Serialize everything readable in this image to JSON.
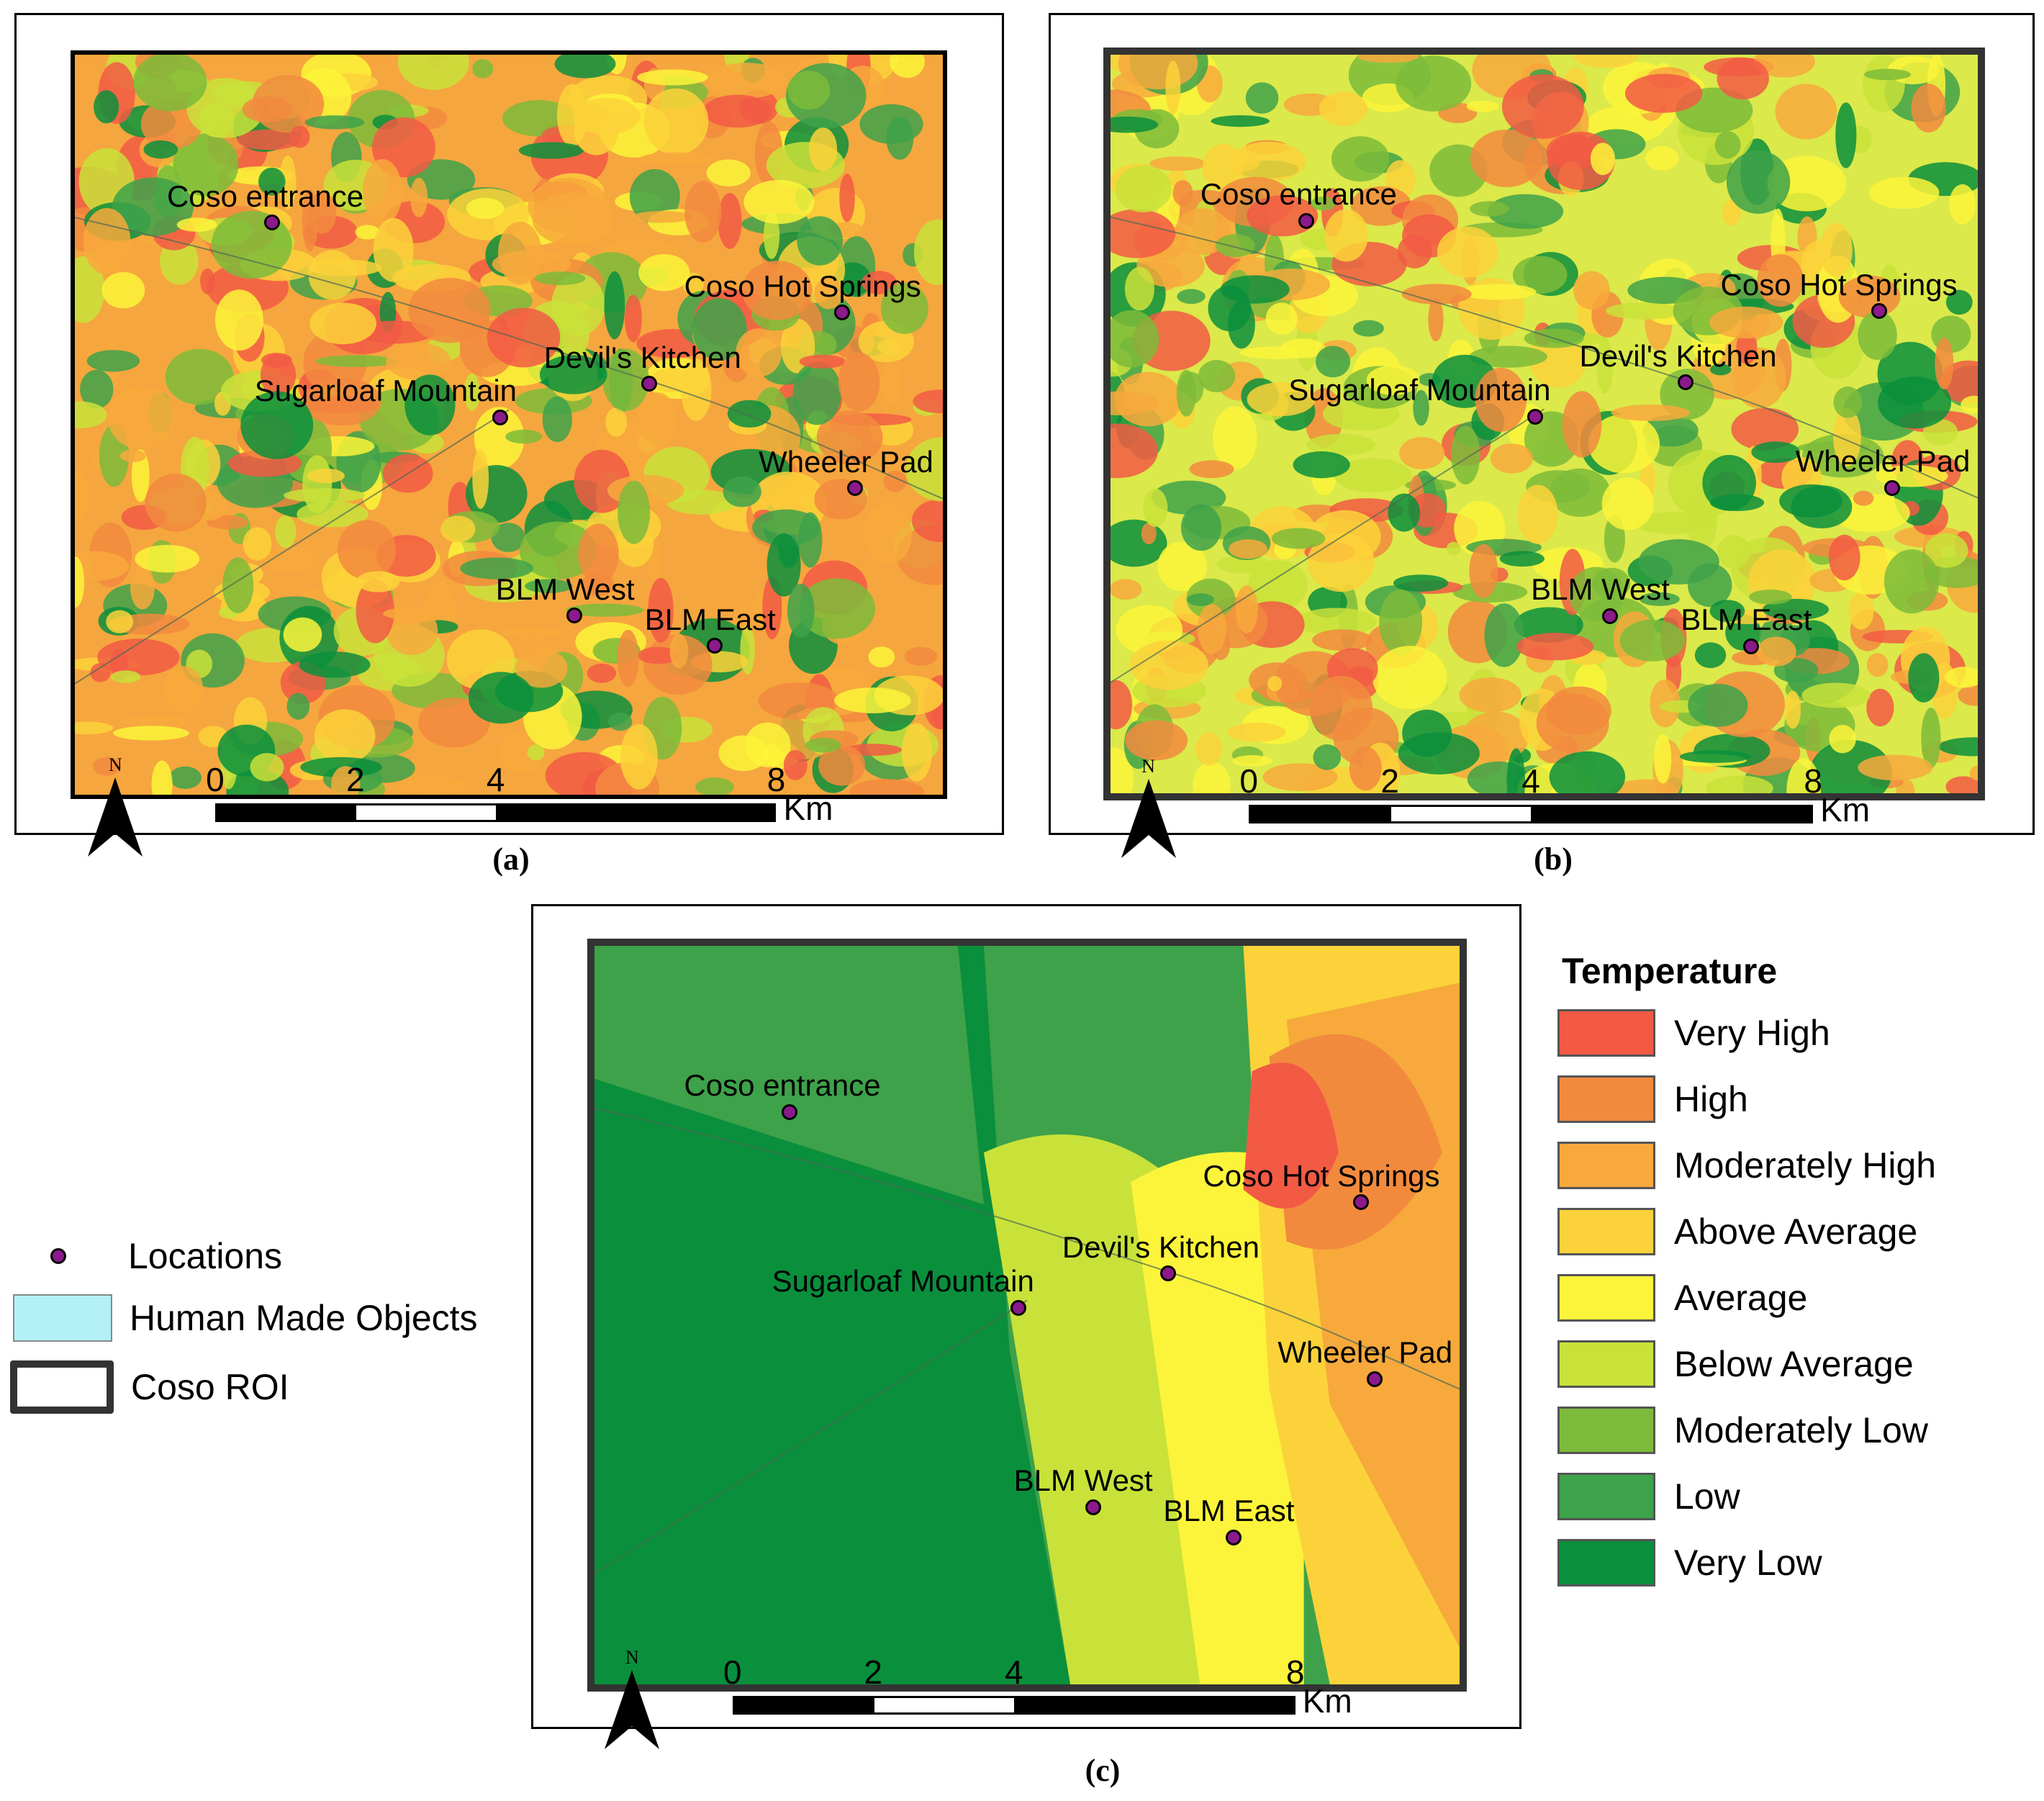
{
  "panels": [
    {
      "id": "a",
      "caption": "(a)",
      "scale_ticks": [
        "0",
        "2",
        "4",
        "8"
      ],
      "scale_unit": "Km",
      "north": "N",
      "base": "#f6a63e",
      "palette": [
        "#0a8f3c",
        "#3ea24a",
        "#7dbb3a",
        "#c9e23a",
        "#fbf43a",
        "#fbd23a",
        "#f7a93c",
        "#f28a3e",
        "#f25a44"
      ],
      "locations": [
        "Coso entrance",
        "Coso Hot Springs",
        "Devil's Kitchen",
        "Sugarloaf Mountain",
        "Wheeler Pad",
        "BLM West",
        "BLM East"
      ]
    },
    {
      "id": "b",
      "caption": "(b)",
      "scale_ticks": [
        "0",
        "2",
        "4",
        "8"
      ],
      "scale_unit": "Km",
      "north": "N",
      "base": "#dbe94a",
      "palette": [
        "#0a8f3c",
        "#3ea24a",
        "#7dbb3a",
        "#c9e23a",
        "#fbf43a",
        "#fbd23a",
        "#f7a93c",
        "#f28a3e",
        "#f25a44"
      ],
      "locations": [
        "Coso entrance",
        "Coso Hot Springs",
        "Devil's Kitchen",
        "Sugarloaf Mountain",
        "Wheeler Pad",
        "BLM West",
        "BLM East"
      ]
    },
    {
      "id": "c",
      "caption": "(c)",
      "scale_ticks": [
        "0",
        "2",
        "4",
        "8"
      ],
      "scale_unit": "Km",
      "north": "N",
      "base": "#3ea24a",
      "palette": [
        "#0a8f3c",
        "#3ea24a",
        "#7dbb3a",
        "#c9e23a",
        "#fbf43a",
        "#fbd23a",
        "#f7a93c",
        "#f28a3e",
        "#f25a44"
      ],
      "locations": [
        "Coso entrance",
        "Coso Hot Springs",
        "Devil's Kitchen",
        "Sugarloaf Mountain",
        "Wheeler Pad",
        "BLM West",
        "BLM East"
      ]
    }
  ],
  "legend": {
    "title": "Temperature",
    "classes": [
      {
        "label": "Very High",
        "color": "#f25a44"
      },
      {
        "label": "High",
        "color": "#f28a3e"
      },
      {
        "label": "Moderately High",
        "color": "#f7a93c"
      },
      {
        "label": "Above Average",
        "color": "#fbd23a"
      },
      {
        "label": "Average",
        "color": "#fbf43a"
      },
      {
        "label": "Below Average",
        "color": "#c9e23a"
      },
      {
        "label": "Moderately Low",
        "color": "#7dbb3a"
      },
      {
        "label": "Low",
        "color": "#3ea24a"
      },
      {
        "label": "Very Low",
        "color": "#0a8f3c"
      }
    ]
  },
  "side_legend": {
    "locations": "Locations",
    "human_made": "Human Made Objects",
    "human_made_color": "#b3f0f8",
    "roi": "Coso ROI",
    "location_color": "#8b1a8b"
  }
}
